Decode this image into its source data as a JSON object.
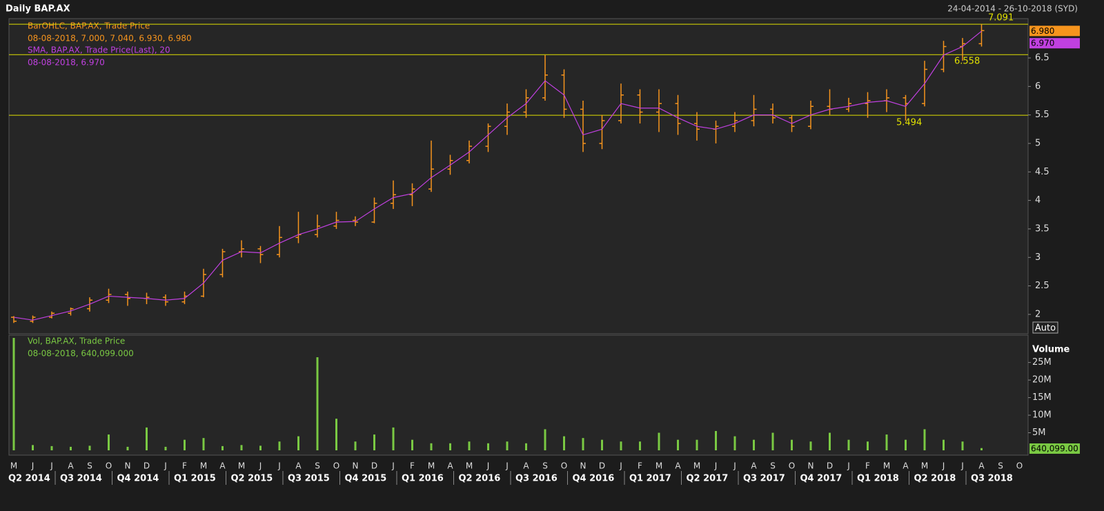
{
  "chart_data": {
    "type": "ohlc",
    "title": "Daily BAP.AX",
    "date_range": "24-04-2014 - 26-10-2018 (SYD)",
    "categories": [
      "M",
      "J",
      "J",
      "A",
      "S",
      "O",
      "N",
      "D",
      "J",
      "F",
      "M",
      "A",
      "M",
      "J",
      "J",
      "A",
      "S",
      "O",
      "N",
      "D",
      "J",
      "F",
      "M",
      "A",
      "M",
      "J",
      "J",
      "A",
      "S",
      "O",
      "N",
      "D",
      "J",
      "F",
      "M",
      "A",
      "M",
      "J",
      "J",
      "A",
      "S",
      "O",
      "N",
      "D",
      "J",
      "F",
      "M",
      "A",
      "M",
      "J",
      "J",
      "A",
      "S",
      "O"
    ],
    "quarters": [
      "Q2 2014",
      "Q3 2014",
      "Q4 2014",
      "Q1 2015",
      "Q2 2015",
      "Q3 2015",
      "Q4 2015",
      "Q1 2016",
      "Q2 2016",
      "Q3 2016",
      "Q4 2016",
      "Q1 2017",
      "Q2 2017",
      "Q3 2017",
      "Q4 2017",
      "Q1 2018",
      "Q2 2018",
      "Q3 2018"
    ],
    "ohlc": {
      "color": "#f7941d",
      "legend": "BarOHLC, BAP.AX, Trade Price",
      "legend_values": "08-08-2018, 7.000, 7.040, 6.930, 6.980",
      "last_label": "6.980",
      "open": [
        1.95,
        1.88,
        1.95,
        2.02,
        2.1,
        2.25,
        2.35,
        2.28,
        2.3,
        2.22,
        2.32,
        2.7,
        3.1,
        3.15,
        3.05,
        3.35,
        3.4,
        3.55,
        3.65,
        3.62,
        3.95,
        4.1,
        4.2,
        4.55,
        4.7,
        4.95,
        5.3,
        5.55,
        5.8,
        6.2,
        5.6,
        5.0,
        5.4,
        5.85,
        5.55,
        5.7,
        5.35,
        5.25,
        5.3,
        5.4,
        5.6,
        5.45,
        5.3,
        5.65,
        5.6,
        5.7,
        5.75,
        5.8,
        5.7,
        6.3,
        6.7,
        6.75,
        null,
        null
      ],
      "high": [
        1.97,
        1.98,
        2.05,
        2.12,
        2.3,
        2.45,
        2.4,
        2.38,
        2.35,
        2.4,
        2.8,
        3.15,
        3.3,
        3.2,
        3.55,
        3.8,
        3.75,
        3.8,
        3.72,
        4.05,
        4.35,
        4.3,
        5.05,
        4.8,
        5.05,
        5.35,
        5.7,
        5.95,
        6.55,
        6.3,
        5.75,
        5.5,
        6.05,
        5.95,
        5.95,
        5.85,
        5.55,
        5.4,
        5.55,
        5.85,
        5.7,
        5.5,
        5.75,
        5.95,
        5.8,
        5.9,
        5.95,
        5.85,
        6.45,
        6.8,
        6.85,
        7.09,
        null,
        null
      ],
      "low": [
        1.85,
        1.85,
        1.93,
        1.98,
        2.05,
        2.2,
        2.15,
        2.18,
        2.15,
        2.18,
        2.3,
        2.65,
        3.0,
        2.9,
        3.0,
        3.25,
        3.35,
        3.5,
        3.55,
        3.6,
        3.85,
        3.9,
        4.15,
        4.45,
        4.65,
        4.85,
        5.15,
        5.45,
        5.75,
        5.45,
        4.85,
        4.9,
        5.35,
        5.35,
        5.2,
        5.15,
        5.05,
        5.0,
        5.2,
        5.3,
        5.35,
        5.2,
        5.25,
        5.5,
        5.55,
        5.45,
        5.55,
        5.4,
        5.65,
        6.25,
        6.45,
        6.7,
        null,
        null
      ],
      "close": [
        1.88,
        1.95,
        2.02,
        2.1,
        2.25,
        2.35,
        2.28,
        2.3,
        2.22,
        2.32,
        2.7,
        3.1,
        3.15,
        3.05,
        3.35,
        3.4,
        3.55,
        3.65,
        3.62,
        3.95,
        4.1,
        4.2,
        4.55,
        4.7,
        4.95,
        5.3,
        5.55,
        5.8,
        6.2,
        5.6,
        5.0,
        5.4,
        5.85,
        5.55,
        5.7,
        5.35,
        5.25,
        5.3,
        5.4,
        5.6,
        5.45,
        5.3,
        5.65,
        5.6,
        5.7,
        5.75,
        5.8,
        5.7,
        6.3,
        6.7,
        6.75,
        6.98,
        null,
        null
      ]
    },
    "sma": {
      "color": "#c040e0",
      "legend": "SMA, BAP.AX, Trade Price(Last),  20",
      "legend_values": "08-08-2018, 6.970",
      "last_label": "6.970",
      "values": [
        1.95,
        1.9,
        1.98,
        2.06,
        2.18,
        2.32,
        2.3,
        2.28,
        2.25,
        2.28,
        2.55,
        2.95,
        3.1,
        3.08,
        3.25,
        3.4,
        3.5,
        3.62,
        3.63,
        3.85,
        4.05,
        4.12,
        4.4,
        4.62,
        4.85,
        5.15,
        5.45,
        5.7,
        6.1,
        5.85,
        5.15,
        5.25,
        5.7,
        5.62,
        5.62,
        5.45,
        5.3,
        5.25,
        5.35,
        5.5,
        5.5,
        5.35,
        5.5,
        5.6,
        5.65,
        5.72,
        5.75,
        5.65,
        6.05,
        6.55,
        6.7,
        6.97,
        null,
        null
      ]
    },
    "levels": [
      7.091,
      6.558,
      5.494
    ],
    "level_color": "#e0e000",
    "ylim": [
      1.66,
      7.19
    ],
    "yticks": [
      2,
      2.5,
      3,
      3.5,
      4,
      4.5,
      5,
      5.5,
      6,
      6.5
    ],
    "scale_mode": "Auto",
    "volume": {
      "color": "#7ac943",
      "label": "Volume",
      "legend": "Vol, BAP.AX, Trade Price",
      "legend_values": "08-08-2018, 640,099.000",
      "last_label": "640,099.00",
      "values": [
        32000000,
        1500000,
        1200000,
        1000000,
        1300000,
        4500000,
        1000000,
        6500000,
        1000000,
        3000000,
        3500000,
        1200000,
        1500000,
        1300000,
        2500000,
        4000000,
        26500000,
        9000000,
        2500000,
        4500000,
        6500000,
        3000000,
        2000000,
        2000000,
        2500000,
        2000000,
        2500000,
        2000000,
        6000000,
        4000000,
        3500000,
        3000000,
        2500000,
        2500000,
        5000000,
        3000000,
        3000000,
        5500000,
        4000000,
        3000000,
        5000000,
        3000000,
        2500000,
        5000000,
        3000000,
        2500000,
        4500000,
        3000000,
        6000000,
        3000000,
        2500000,
        640099,
        null,
        null
      ],
      "ylim": [
        0,
        32000000
      ],
      "yticks": [
        {
          "value": 5000000,
          "label": "5M"
        },
        {
          "value": 10000000,
          "label": "10M"
        },
        {
          "value": 15000000,
          "label": "15M"
        },
        {
          "value": 20000000,
          "label": "20M"
        },
        {
          "value": 25000000,
          "label": "25M"
        }
      ]
    }
  }
}
